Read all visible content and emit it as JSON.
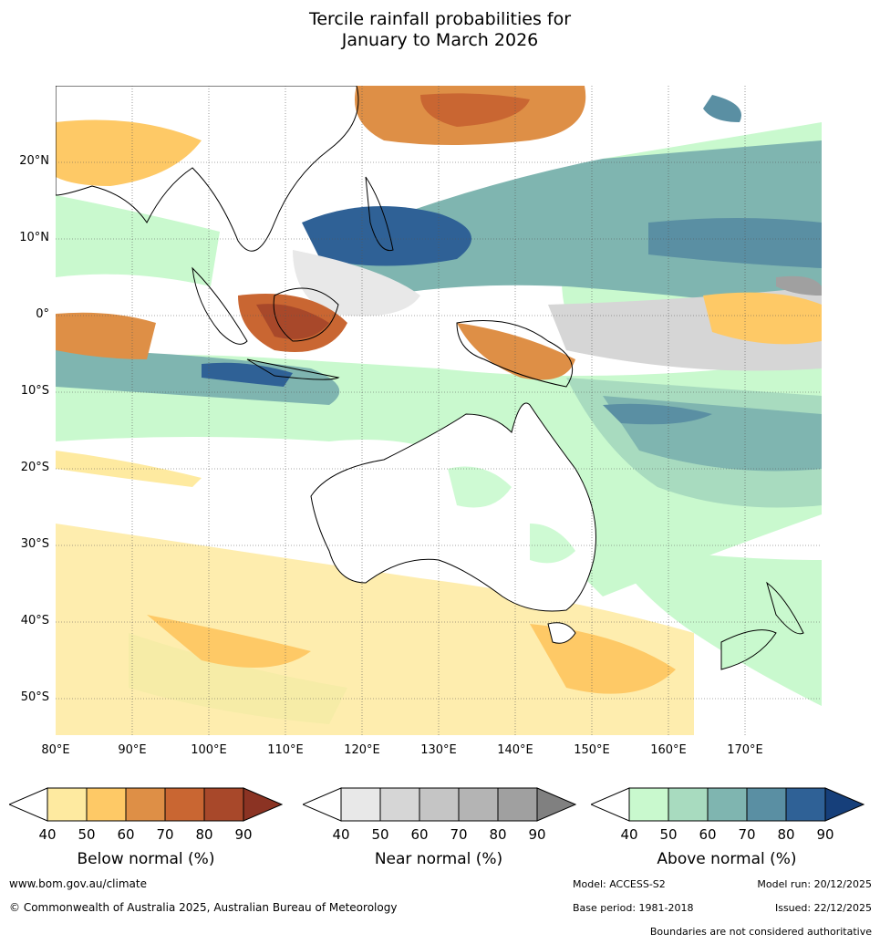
{
  "title_line1": "Tercile rainfall probabilities for",
  "title_line2": "January to March 2026",
  "lat_labels": [
    "20°N",
    "10°N",
    "0°",
    "10°S",
    "20°S",
    "30°S",
    "40°S",
    "50°S"
  ],
  "lon_labels": [
    "80°E",
    "90°E",
    "100°E",
    "110°E",
    "120°E",
    "130°E",
    "140°E",
    "150°E",
    "160°E",
    "170°E"
  ],
  "colorbars": [
    {
      "title": "Below normal (%)",
      "ticks": [
        "40",
        "50",
        "60",
        "70",
        "80",
        "90"
      ],
      "colors": [
        "#ffffff",
        "#feeaa0",
        "#fec966",
        "#de8f46",
        "#c96632",
        "#a8482a",
        "#8b3323"
      ]
    },
    {
      "title": "Near normal (%)",
      "ticks": [
        "40",
        "50",
        "60",
        "70",
        "80",
        "90"
      ],
      "colors": [
        "#ffffff",
        "#e8e8e8",
        "#d6d6d6",
        "#c5c5c5",
        "#b4b4b4",
        "#a0a0a0",
        "#808080"
      ]
    },
    {
      "title": "Above normal (%)",
      "ticks": [
        "40",
        "50",
        "60",
        "70",
        "80",
        "90"
      ],
      "colors": [
        "#ffffff",
        "#c9f9ce",
        "#a8dbbf",
        "#7fb5b0",
        "#5a8fa3",
        "#2f6196",
        "#163f7a"
      ]
    }
  ],
  "footer": {
    "url": "www.bom.gov.au/climate",
    "copyright": "© Commonwealth of Australia 2025, Australian Bureau of Meteorology",
    "model": "Model: ACCESS-S2",
    "base_period": "Base period: 1981-2018",
    "model_run": "Model run: 20/12/2025",
    "issued": "Issued: 22/12/2025",
    "disclaimer": "Boundaries are not considered authoritative"
  }
}
